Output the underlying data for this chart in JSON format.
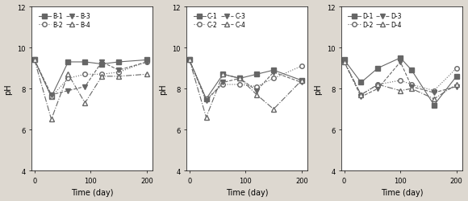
{
  "panels": [
    {
      "label_prefix": "B",
      "x": [
        0,
        30,
        60,
        90,
        120,
        150,
        200
      ],
      "series": [
        {
          "name": "B-1",
          "y": [
            9.4,
            7.6,
            9.3,
            9.3,
            9.2,
            9.3,
            9.4
          ],
          "linestyle": "-",
          "marker": "s",
          "fillstyle": "full"
        },
        {
          "name": "B-2",
          "y": [
            9.4,
            7.6,
            8.5,
            8.7,
            8.7,
            8.8,
            9.3
          ],
          "linestyle": ":",
          "marker": "o",
          "fillstyle": "none"
        },
        {
          "name": "B-3",
          "y": [
            9.4,
            7.7,
            7.9,
            8.1,
            9.3,
            8.9,
            9.3
          ],
          "linestyle": "--",
          "marker": "v",
          "fillstyle": "full"
        },
        {
          "name": "B-4",
          "y": [
            9.4,
            6.5,
            8.7,
            7.3,
            8.6,
            8.6,
            8.7
          ],
          "linestyle": "-.",
          "marker": "^",
          "fillstyle": "none"
        }
      ]
    },
    {
      "label_prefix": "C",
      "x": [
        0,
        30,
        60,
        90,
        120,
        150,
        200
      ],
      "series": [
        {
          "name": "C-1",
          "y": [
            9.4,
            7.5,
            8.7,
            8.5,
            8.7,
            8.9,
            8.4
          ],
          "linestyle": "-",
          "marker": "s",
          "fillstyle": "full"
        },
        {
          "name": "C-2",
          "y": [
            9.4,
            7.5,
            8.2,
            8.2,
            8.1,
            8.5,
            9.1
          ],
          "linestyle": ":",
          "marker": "o",
          "fillstyle": "none"
        },
        {
          "name": "C-3",
          "y": [
            9.4,
            7.4,
            8.3,
            8.5,
            7.9,
            8.8,
            8.3
          ],
          "linestyle": "--",
          "marker": "v",
          "fillstyle": "full"
        },
        {
          "name": "C-4",
          "y": [
            9.4,
            6.6,
            8.7,
            8.5,
            7.7,
            7.0,
            8.4
          ],
          "linestyle": "-.",
          "marker": "^",
          "fillstyle": "none"
        }
      ]
    },
    {
      "label_prefix": "D",
      "x": [
        0,
        30,
        60,
        100,
        120,
        160,
        200
      ],
      "series": [
        {
          "name": "D-1",
          "y": [
            9.4,
            8.3,
            9.0,
            9.5,
            8.9,
            7.2,
            8.6
          ],
          "linestyle": "-",
          "marker": "s",
          "fillstyle": "full"
        },
        {
          "name": "D-2",
          "y": [
            9.3,
            7.7,
            8.2,
            8.4,
            8.2,
            7.9,
            9.0
          ],
          "linestyle": ":",
          "marker": "o",
          "fillstyle": "none"
        },
        {
          "name": "D-3",
          "y": [
            9.3,
            7.6,
            8.0,
            9.3,
            8.1,
            7.8,
            8.1
          ],
          "linestyle": "--",
          "marker": "v",
          "fillstyle": "full"
        },
        {
          "name": "D-4",
          "y": [
            9.3,
            7.7,
            8.2,
            7.9,
            8.0,
            7.5,
            8.2
          ],
          "linestyle": "-.",
          "marker": "^",
          "fillstyle": "none"
        }
      ]
    }
  ],
  "ylim": [
    4,
    12
  ],
  "yticks": [
    4,
    6,
    8,
    10,
    12
  ],
  "xlim": [
    -5,
    210
  ],
  "xticks": [
    0,
    100,
    200
  ],
  "xlabel": "Time (day)",
  "ylabel": "pH",
  "line_color": "#666666",
  "marker_size": 4,
  "linewidth": 0.8,
  "legend_fontsize": 5.5,
  "axis_fontsize": 7,
  "tick_fontsize": 6,
  "bg_color": "#e8e0d8",
  "fig_bg": "#ddd8d0"
}
